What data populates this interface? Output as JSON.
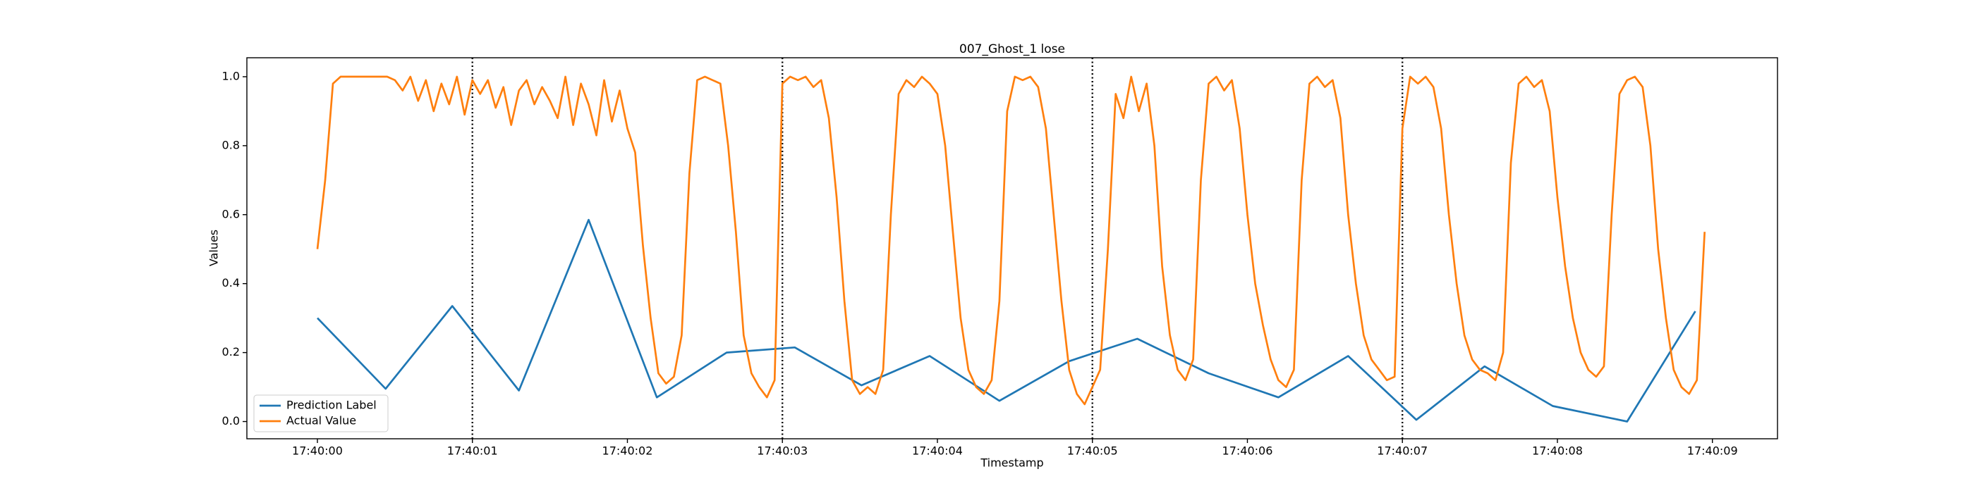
{
  "chart_data": {
    "type": "line",
    "title": "007_Ghost_1 lose",
    "x_label": "Timestamp",
    "y_label": "Values",
    "xlim": [
      -0.455,
      9.42
    ],
    "ylim": [
      -0.05,
      1.055
    ],
    "xticks": [
      {
        "value": 0,
        "label": "17:40:00"
      },
      {
        "value": 1,
        "label": "17:40:01"
      },
      {
        "value": 2,
        "label": "17:40:02"
      },
      {
        "value": 3,
        "label": "17:40:03"
      },
      {
        "value": 4,
        "label": "17:40:04"
      },
      {
        "value": 5,
        "label": "17:40:05"
      },
      {
        "value": 6,
        "label": "17:40:06"
      },
      {
        "value": 7,
        "label": "17:40:07"
      },
      {
        "value": 8,
        "label": "17:40:08"
      },
      {
        "value": 9,
        "label": "17:40:09"
      }
    ],
    "yticks": [
      {
        "value": 0,
        "label": "0.0"
      },
      0.2,
      0.4,
      0.6,
      0.8,
      {
        "value": 1,
        "label": "1.0"
      }
    ],
    "vlines": [
      1,
      3,
      5,
      7
    ],
    "legend": "lower left",
    "series": [
      {
        "name": "Prediction Label",
        "color": "#1f77b4",
        "x": [
          0,
          0.44,
          0.87,
          1.3,
          1.75,
          2.19,
          2.64,
          3.08,
          3.51,
          3.95,
          4.4,
          4.85,
          5.29,
          5.75,
          6.2,
          6.65,
          7.09,
          7.53,
          7.97,
          8.45,
          8.89
        ],
        "values": [
          0.3,
          0.095,
          0.335,
          0.09,
          0.585,
          0.07,
          0.2,
          0.215,
          0.105,
          0.19,
          0.06,
          0.175,
          0.24,
          0.14,
          0.07,
          0.19,
          0.005,
          0.16,
          0.045,
          0.0,
          0.32
        ]
      },
      {
        "name": "Actual Value",
        "color": "#ff7f0e",
        "x": [
          0,
          0.05,
          0.1,
          0.15,
          0.2,
          0.25,
          0.3,
          0.35,
          0.4,
          0.45,
          0.5,
          0.55,
          0.6,
          0.65,
          0.7,
          0.75,
          0.8,
          0.85,
          0.9,
          0.95,
          1,
          1.05,
          1.1,
          1.15,
          1.2,
          1.25,
          1.3,
          1.35,
          1.4,
          1.45,
          1.5,
          1.55,
          1.6,
          1.65,
          1.7,
          1.75,
          1.8,
          1.85,
          1.9,
          1.95,
          2,
          2.05,
          2.1,
          2.15,
          2.2,
          2.25,
          2.3,
          2.35,
          2.4,
          2.45,
          2.5,
          2.55,
          2.6,
          2.65,
          2.7,
          2.75,
          2.8,
          2.85,
          2.9,
          2.95,
          3,
          3.05,
          3.1,
          3.15,
          3.2,
          3.25,
          3.3,
          3.35,
          3.4,
          3.45,
          3.5,
          3.55,
          3.6,
          3.65,
          3.7,
          3.75,
          3.8,
          3.85,
          3.9,
          3.95,
          4,
          4.05,
          4.1,
          4.15,
          4.2,
          4.25,
          4.3,
          4.35,
          4.4,
          4.45,
          4.5,
          4.55,
          4.6,
          4.65,
          4.7,
          4.75,
          4.8,
          4.85,
          4.9,
          4.95,
          5,
          5.05,
          5.1,
          5.15,
          5.2,
          5.25,
          5.3,
          5.35,
          5.4,
          5.45,
          5.5,
          5.55,
          5.6,
          5.65,
          5.7,
          5.75,
          5.8,
          5.85,
          5.9,
          5.95,
          6,
          6.05,
          6.1,
          6.15,
          6.2,
          6.25,
          6.3,
          6.35,
          6.4,
          6.45,
          6.5,
          6.55,
          6.6,
          6.65,
          6.7,
          6.75,
          6.8,
          6.85,
          6.9,
          6.95,
          7,
          7.05,
          7.1,
          7.15,
          7.2,
          7.25,
          7.3,
          7.35,
          7.4,
          7.45,
          7.5,
          7.55,
          7.6,
          7.65,
          7.7,
          7.75,
          7.8,
          7.85,
          7.9,
          7.95,
          8,
          8.05,
          8.1,
          8.15,
          8.2,
          8.25,
          8.3,
          8.35,
          8.4,
          8.45,
          8.5,
          8.55,
          8.6,
          8.65,
          8.7,
          8.75,
          8.8,
          8.85,
          8.9,
          8.95
        ],
        "values": [
          0.5,
          0.7,
          0.98,
          1.0,
          1.0,
          1.0,
          1.0,
          1.0,
          1.0,
          1.0,
          0.99,
          0.96,
          1.0,
          0.93,
          0.99,
          0.9,
          0.98,
          0.92,
          1.0,
          0.89,
          0.99,
          0.95,
          0.99,
          0.91,
          0.97,
          0.86,
          0.96,
          0.99,
          0.92,
          0.97,
          0.93,
          0.88,
          1.0,
          0.86,
          0.98,
          0.92,
          0.83,
          0.99,
          0.87,
          0.96,
          0.85,
          0.78,
          0.51,
          0.3,
          0.14,
          0.11,
          0.13,
          0.25,
          0.72,
          0.99,
          1.0,
          0.99,
          0.98,
          0.8,
          0.55,
          0.25,
          0.14,
          0.1,
          0.07,
          0.12,
          0.98,
          1.0,
          0.99,
          1.0,
          0.97,
          0.99,
          0.88,
          0.65,
          0.35,
          0.12,
          0.08,
          0.1,
          0.08,
          0.15,
          0.6,
          0.95,
          0.99,
          0.97,
          1.0,
          0.98,
          0.95,
          0.8,
          0.55,
          0.3,
          0.15,
          0.1,
          0.08,
          0.12,
          0.35,
          0.9,
          1.0,
          0.99,
          1.0,
          0.97,
          0.85,
          0.6,
          0.35,
          0.15,
          0.08,
          0.05,
          0.1,
          0.15,
          0.5,
          0.95,
          0.88,
          1.0,
          0.9,
          0.98,
          0.8,
          0.45,
          0.25,
          0.15,
          0.12,
          0.18,
          0.7,
          0.98,
          1.0,
          0.96,
          0.99,
          0.85,
          0.6,
          0.4,
          0.28,
          0.18,
          0.12,
          0.1,
          0.15,
          0.7,
          0.98,
          1.0,
          0.97,
          0.99,
          0.88,
          0.6,
          0.4,
          0.25,
          0.18,
          0.15,
          0.12,
          0.13,
          0.85,
          1.0,
          0.98,
          1.0,
          0.97,
          0.85,
          0.6,
          0.4,
          0.25,
          0.18,
          0.15,
          0.14,
          0.12,
          0.2,
          0.75,
          0.98,
          1.0,
          0.97,
          0.99,
          0.9,
          0.65,
          0.45,
          0.3,
          0.2,
          0.15,
          0.13,
          0.16,
          0.6,
          0.95,
          0.99,
          1.0,
          0.97,
          0.8,
          0.5,
          0.3,
          0.15,
          0.1,
          0.08,
          0.12,
          0.55
        ]
      }
    ]
  }
}
